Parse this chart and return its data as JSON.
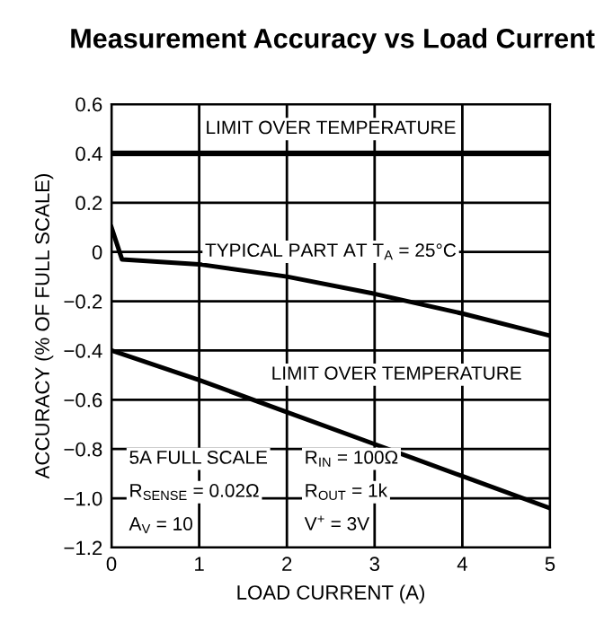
{
  "chart_data": {
    "type": "line",
    "title": "Measurement Accuracy vs Load Current",
    "xlabel": "LOAD CURRENT (A)",
    "ylabel": "ACCURACY (% OF FULL SCALE)",
    "xlim": [
      0,
      5
    ],
    "ylim": [
      -1.2,
      0.6
    ],
    "xticks": [
      0,
      1,
      2,
      3,
      4,
      5
    ],
    "yticks": [
      {
        "value": -1.2,
        "label": "−1.2"
      },
      {
        "value": -1.0,
        "label": "−1.0"
      },
      {
        "value": -0.8,
        "label": "−0.8"
      },
      {
        "value": -0.6,
        "label": "−0.6"
      },
      {
        "value": -0.4,
        "label": "−0.4"
      },
      {
        "value": -0.2,
        "label": "−0.2"
      },
      0,
      0.2,
      0.4,
      0.6
    ],
    "grid": true,
    "ref_lines": [
      {
        "axis": "y",
        "value": 0.4,
        "label": "LIMIT OVER TEMPERATURE",
        "color": "#000000"
      }
    ],
    "legend": false,
    "marker": "none",
    "line_style": "solid",
    "series": [
      {
        "color": "#000000",
        "x": [
          0,
          0.12,
          1,
          2,
          3,
          4,
          5
        ],
        "values": [
          0.1,
          -0.03,
          -0.05,
          -0.1,
          -0.17,
          -0.25,
          -0.34
        ]
      },
      {
        "color": "#000000",
        "x": [
          0,
          1,
          2,
          3,
          4,
          5
        ],
        "values": [
          -0.4,
          -0.52,
          -0.65,
          -0.78,
          -0.91,
          -1.04
        ]
      }
    ],
    "annotations": [
      "TYPICAL PART AT T$_{A}$ = 25°C",
      "LIMIT OVER TEMPERATURE",
      "5A FULL SCALE",
      "R$_{SENSE}$ = 0.02Ω",
      "A$_{V}$ = 10",
      "R$_{IN}$ = 100Ω",
      "R$_{OUT}$ = 1k",
      "V$^{+}$ = 3V"
    ]
  }
}
